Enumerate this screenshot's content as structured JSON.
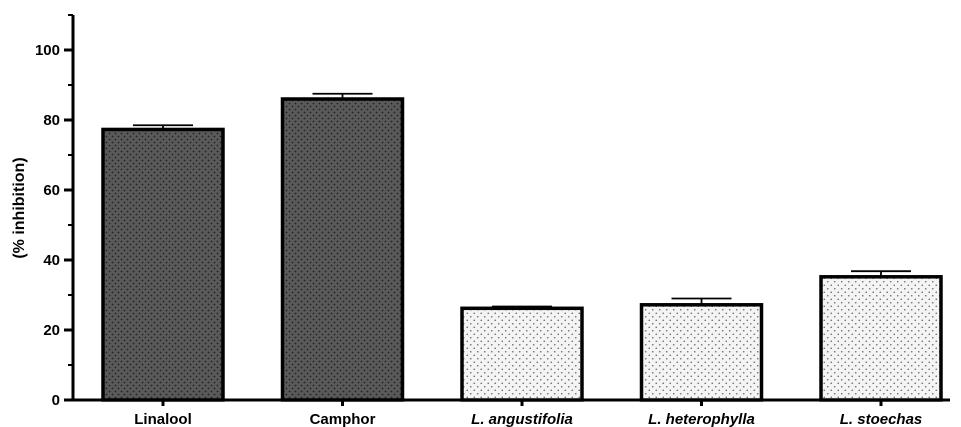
{
  "chart_data": {
    "type": "bar",
    "title": "",
    "xlabel": "",
    "ylabel": "(% inhibition)",
    "ylim": [
      0,
      110
    ],
    "yticks": [
      0,
      20,
      40,
      60,
      80,
      100
    ],
    "grid": false,
    "legend": "none",
    "categories": [
      "Linalool",
      "Camphor",
      "L. angustifolia",
      "L. heterophylla",
      "L. stoechas"
    ],
    "italic_categories": [
      false,
      false,
      true,
      true,
      true
    ],
    "values": [
      77.3,
      86.0,
      26.2,
      27.2,
      35.2
    ],
    "errors": [
      1.2,
      1.5,
      0.5,
      1.8,
      1.6
    ],
    "fill_styles": [
      "dark-dotted",
      "dark-dotted",
      "light-dotted",
      "light-dotted",
      "light-dotted"
    ],
    "colors": {
      "dark_fill": "#5a5a5a",
      "light_fill": "#f4f4f4",
      "axis": "#000000"
    }
  }
}
